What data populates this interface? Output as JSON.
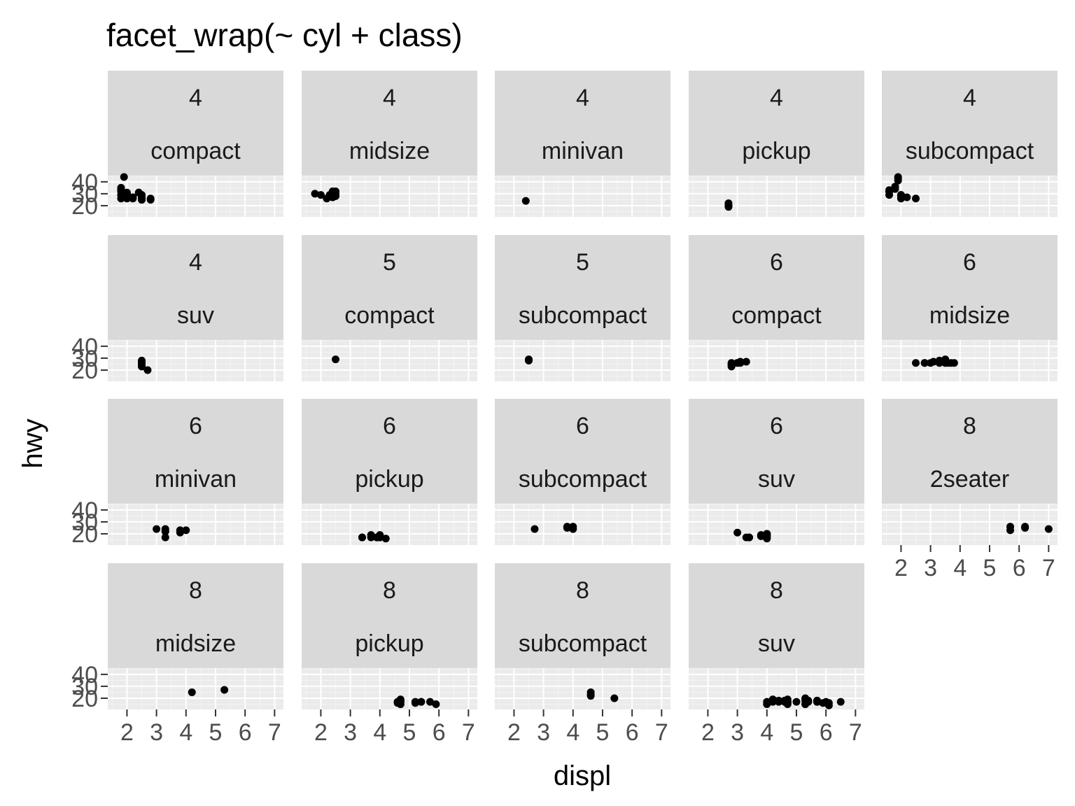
{
  "chart_data": {
    "type": "scatter",
    "title": "facet_wrap(~ cyl + class)",
    "xlabel": "displ",
    "ylabel": "hwy",
    "x_ticks": [
      2,
      3,
      4,
      5,
      6,
      7
    ],
    "y_ticks": [
      20,
      30,
      40
    ],
    "xlim": [
      1.35,
      7.3
    ],
    "ylim": [
      10.6,
      45.2
    ],
    "grid": true,
    "facet_columns": 5,
    "colors": {
      "panel_bg": "#ebebeb",
      "strip_bg": "#d9d9d9",
      "grid_major": "#ffffff",
      "point": "#000000",
      "tick_text": "#4d4d4d",
      "strip_text": "#1a1a1a"
    },
    "panels": [
      {
        "cyl": "4",
        "class": "compact",
        "points": [
          [
            1.8,
            29
          ],
          [
            1.8,
            29
          ],
          [
            2.0,
            31
          ],
          [
            2.0,
            30
          ],
          [
            2.8,
            26
          ],
          [
            1.8,
            26
          ],
          [
            2.0,
            28
          ],
          [
            1.8,
            32
          ],
          [
            1.8,
            33
          ],
          [
            1.8,
            35
          ],
          [
            1.8,
            33
          ],
          [
            1.9,
            44
          ],
          [
            2.0,
            29
          ],
          [
            2.0,
            26
          ],
          [
            2.5,
            29
          ],
          [
            2.5,
            29
          ],
          [
            2.2,
            27
          ],
          [
            2.2,
            27
          ],
          [
            2.4,
            31
          ],
          [
            2.4,
            31
          ],
          [
            2.5,
            27
          ],
          [
            2.5,
            25
          ],
          [
            2.5,
            26
          ],
          [
            2.5,
            27
          ],
          [
            2.5,
            25
          ],
          [
            2.8,
            25
          ],
          [
            2.2,
            26
          ]
        ]
      },
      {
        "cyl": "4",
        "class": "midsize",
        "points": [
          [
            1.8,
            30
          ],
          [
            2.0,
            29
          ],
          [
            2.4,
            29
          ],
          [
            2.4,
            32
          ],
          [
            2.5,
            32
          ],
          [
            2.5,
            30
          ],
          [
            2.4,
            27
          ],
          [
            2.4,
            27
          ],
          [
            2.4,
            31
          ],
          [
            2.5,
            28
          ],
          [
            2.2,
            26
          ],
          [
            2.3,
            29
          ]
        ]
      },
      {
        "cyl": "4",
        "class": "minivan",
        "points": [
          [
            2.4,
            24
          ]
        ]
      },
      {
        "cyl": "4",
        "class": "pickup",
        "points": [
          [
            2.7,
            20
          ],
          [
            2.7,
            20
          ],
          [
            2.7,
            22
          ],
          [
            2.7,
            19
          ]
        ]
      },
      {
        "cyl": "4",
        "class": "subcompact",
        "points": [
          [
            1.6,
            33
          ],
          [
            1.6,
            32
          ],
          [
            1.6,
            32
          ],
          [
            1.6,
            29
          ],
          [
            1.6,
            32
          ],
          [
            1.8,
            34
          ],
          [
            1.8,
            36
          ],
          [
            2.0,
            29
          ],
          [
            2.0,
            26
          ],
          [
            1.9,
            44
          ],
          [
            1.9,
            41
          ],
          [
            1.9,
            43
          ],
          [
            2.0,
            29
          ],
          [
            2.0,
            28
          ],
          [
            2.2,
            27
          ],
          [
            2.5,
            26
          ]
        ]
      },
      {
        "cyl": "4",
        "class": "suv",
        "points": [
          [
            2.5,
            25
          ],
          [
            2.5,
            24
          ],
          [
            2.5,
            27
          ],
          [
            2.7,
            20
          ],
          [
            2.5,
            26
          ],
          [
            2.5,
            28
          ],
          [
            2.5,
            23
          ]
        ]
      },
      {
        "cyl": "5",
        "class": "compact",
        "points": [
          [
            2.5,
            29
          ]
        ]
      },
      {
        "cyl": "5",
        "class": "subcompact",
        "points": [
          [
            2.5,
            28
          ],
          [
            2.5,
            29
          ]
        ]
      },
      {
        "cyl": "6",
        "class": "compact",
        "points": [
          [
            2.8,
            26
          ],
          [
            3.1,
            27
          ],
          [
            3.1,
            26
          ],
          [
            2.8,
            24
          ],
          [
            3.0,
            26
          ],
          [
            3.3,
            27
          ],
          [
            3.0,
            26
          ],
          [
            2.8,
            25
          ],
          [
            2.8,
            23
          ]
        ]
      },
      {
        "cyl": "6",
        "class": "midsize",
        "points": [
          [
            2.8,
            26
          ],
          [
            3.1,
            27
          ],
          [
            3.5,
            29
          ],
          [
            3.6,
            26
          ],
          [
            3.8,
            26
          ],
          [
            3.5,
            26
          ],
          [
            3.5,
            28
          ],
          [
            3.0,
            26
          ],
          [
            3.3,
            26
          ],
          [
            3.7,
            26
          ],
          [
            3.5,
            26
          ],
          [
            2.5,
            26
          ],
          [
            2.8,
            26
          ],
          [
            3.3,
            28
          ]
        ]
      },
      {
        "cyl": "6",
        "class": "minivan",
        "points": [
          [
            3.0,
            24
          ],
          [
            3.3,
            24
          ],
          [
            3.3,
            22
          ],
          [
            3.3,
            22
          ],
          [
            3.3,
            17
          ],
          [
            3.8,
            22
          ],
          [
            3.8,
            21
          ],
          [
            3.8,
            23
          ],
          [
            4.0,
            23
          ]
        ]
      },
      {
        "cyl": "6",
        "class": "pickup",
        "points": [
          [
            3.7,
            19
          ],
          [
            3.9,
            17
          ],
          [
            3.9,
            17
          ],
          [
            4.0,
            18
          ],
          [
            4.0,
            17
          ],
          [
            4.2,
            16
          ],
          [
            3.4,
            17
          ],
          [
            4.0,
            19
          ],
          [
            4.0,
            18
          ],
          [
            3.4,
            17
          ],
          [
            4.0,
            17
          ],
          [
            3.7,
            17
          ]
        ]
      },
      {
        "cyl": "6",
        "class": "subcompact",
        "points": [
          [
            3.8,
            26
          ],
          [
            3.8,
            25
          ],
          [
            4.0,
            26
          ],
          [
            4.0,
            24
          ],
          [
            2.7,
            24
          ]
        ]
      },
      {
        "cyl": "6",
        "class": "suv",
        "points": [
          [
            3.4,
            17
          ],
          [
            3.8,
            19
          ],
          [
            4.0,
            17
          ],
          [
            4.0,
            19
          ],
          [
            4.0,
            18
          ],
          [
            4.0,
            20
          ],
          [
            4.0,
            16
          ],
          [
            3.3,
            17
          ],
          [
            3.4,
            17
          ],
          [
            3.8,
            18
          ],
          [
            3.0,
            21
          ],
          [
            4.0,
            20
          ]
        ]
      },
      {
        "cyl": "8",
        "class": "2seater",
        "points": [
          [
            5.7,
            26
          ],
          [
            5.7,
            23
          ],
          [
            6.2,
            26
          ],
          [
            6.2,
            25
          ],
          [
            7.0,
            24
          ]
        ]
      },
      {
        "cyl": "8",
        "class": "midsize",
        "points": [
          [
            5.3,
            27
          ],
          [
            4.2,
            25
          ]
        ]
      },
      {
        "cyl": "8",
        "class": "pickup",
        "points": [
          [
            4.7,
            17
          ],
          [
            4.7,
            15
          ],
          [
            4.7,
            15
          ],
          [
            5.2,
            17
          ],
          [
            5.2,
            16
          ],
          [
            5.7,
            17
          ],
          [
            5.9,
            15
          ],
          [
            4.7,
            18
          ],
          [
            4.7,
            19
          ],
          [
            4.7,
            17
          ],
          [
            4.6,
            17
          ],
          [
            5.4,
            17
          ],
          [
            5.4,
            17
          ],
          [
            4.6,
            16
          ]
        ]
      },
      {
        "cyl": "8",
        "class": "subcompact",
        "points": [
          [
            4.6,
            23
          ],
          [
            4.6,
            22
          ],
          [
            5.4,
            20
          ],
          [
            4.6,
            25
          ]
        ]
      },
      {
        "cyl": "8",
        "class": "suv",
        "points": [
          [
            4.0,
            15
          ],
          [
            4.2,
            17
          ],
          [
            4.4,
            17
          ],
          [
            5.3,
            19
          ],
          [
            5.3,
            20
          ],
          [
            5.3,
            15
          ],
          [
            5.7,
            17
          ],
          [
            6.0,
            17
          ],
          [
            5.7,
            17
          ],
          [
            5.7,
            18
          ],
          [
            6.1,
            16
          ],
          [
            5.3,
            15
          ],
          [
            5.3,
            18
          ],
          [
            5.7,
            18
          ],
          [
            6.5,
            17
          ],
          [
            4.7,
            19
          ],
          [
            4.7,
            17
          ],
          [
            4.7,
            15
          ],
          [
            5.7,
            17
          ],
          [
            6.1,
            14
          ],
          [
            4.7,
            16
          ],
          [
            4.7,
            17
          ],
          [
            5.0,
            17
          ],
          [
            4.6,
            17
          ],
          [
            5.4,
            18
          ],
          [
            5.4,
            17
          ],
          [
            4.6,
            18
          ],
          [
            4.2,
            19
          ],
          [
            4.4,
            18
          ],
          [
            5.9,
            16
          ],
          [
            4.0,
            17
          ],
          [
            5.4,
            17
          ]
        ]
      }
    ]
  }
}
